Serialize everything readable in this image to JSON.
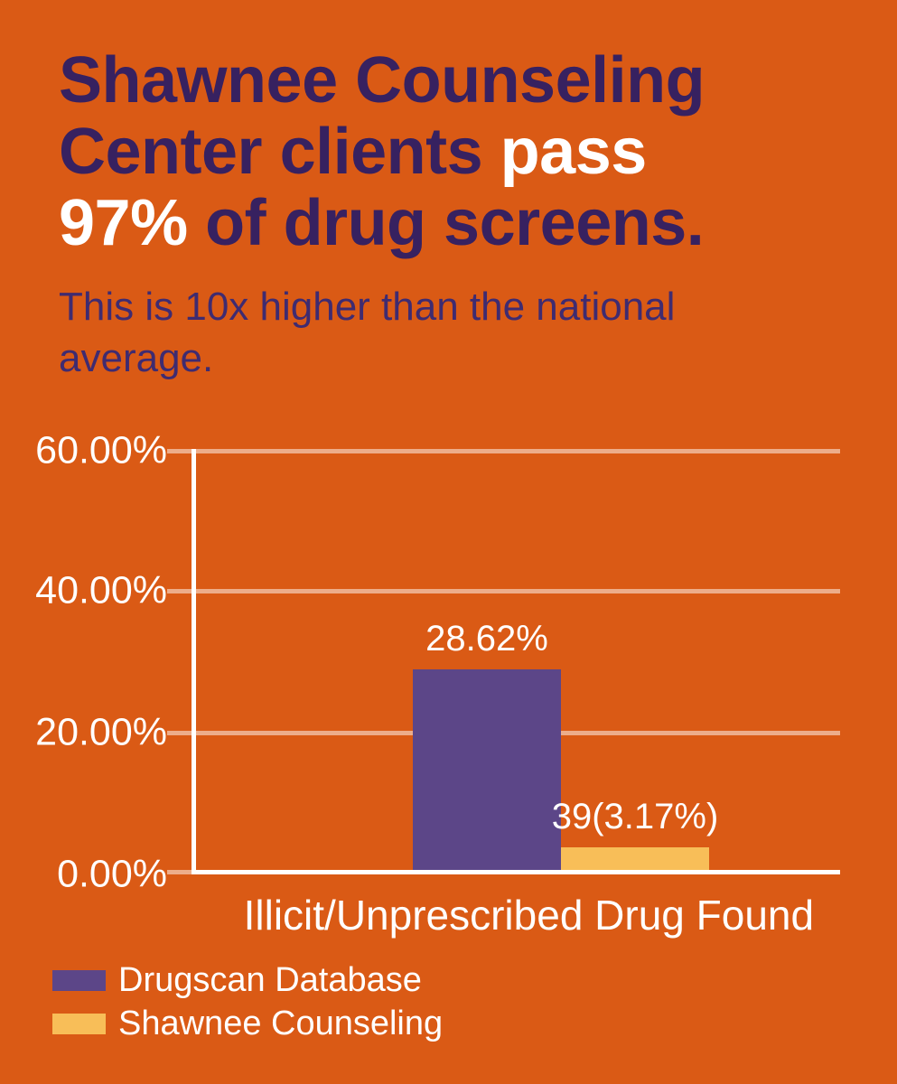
{
  "colors": {
    "background": "#DA5A15",
    "title_primary": "#372160",
    "title_accent": "#FFFFFF",
    "subtitle": "#3F2B70",
    "axis_and_labels": "#FFFFFF",
    "gridline": "rgba(255,255,255,0.5)",
    "bar_drugscan": "#5C4688",
    "bar_shawnee": "#F8BE58"
  },
  "headline": {
    "full_text": "Shawnee Counseling Center clients pass 97% of drug screens.",
    "lines": [
      {
        "segments": [
          {
            "text": "Shawnee Counseling",
            "style": "primary"
          }
        ]
      },
      {
        "segments": [
          {
            "text": "Center clients ",
            "style": "primary"
          },
          {
            "text": "pass",
            "style": "accent"
          }
        ]
      },
      {
        "segments": [
          {
            "text": "97%",
            "style": "accent"
          },
          {
            "text": " of drug screens.",
            "style": "primary"
          }
        ]
      }
    ]
  },
  "subtitle": {
    "text": "This is 10x higher than the national average."
  },
  "chart_data": {
    "type": "bar",
    "title": "Shawnee Counseling Center clients pass 97% of drug screens.",
    "subtitle": "This is 10x higher than the national average.",
    "categories": [
      "Illicit/Unprescribed Drug Found"
    ],
    "series": [
      {
        "name": "Drugscan Database",
        "values": [
          28.62
        ],
        "data_label": "28.62%",
        "color": "#5C4688"
      },
      {
        "name": "Shawnee Counseling",
        "values": [
          3.17
        ],
        "data_label": "39(3.17%)",
        "color": "#F8BE58"
      }
    ],
    "xlabel": "Illicit/Unprescribed Drug Found",
    "ylabel": "",
    "ylim": [
      0,
      60
    ],
    "ytick_labels": [
      "60.00%",
      "40.00%",
      "20.00%",
      "0.00%"
    ],
    "grid": true,
    "legend_position": "bottom-left"
  }
}
